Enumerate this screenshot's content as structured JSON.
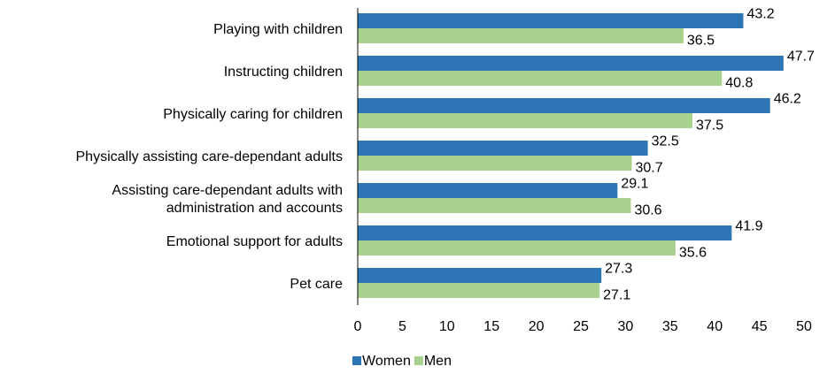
{
  "chart_data": {
    "type": "bar",
    "orientation": "horizontal",
    "categories": [
      "Playing with children",
      "Instructing children",
      "Physically caring for children",
      "Physically assisting care-dependant adults",
      "Assisting care-dependant adults with administration and accounts",
      "Emotional support for adults",
      "Pet care"
    ],
    "category_lines": [
      [
        "Playing with children"
      ],
      [
        "Instructing children"
      ],
      [
        "Physically caring for children"
      ],
      [
        "Physically assisting care-dependant adults"
      ],
      [
        "Assisting care-dependant adults with",
        "administration and accounts"
      ],
      [
        "Emotional support for adults"
      ],
      [
        "Pet care"
      ]
    ],
    "series": [
      {
        "name": "Women",
        "color": "#2E75B6",
        "values": [
          43.2,
          47.7,
          46.2,
          32.5,
          29.1,
          41.9,
          27.3
        ]
      },
      {
        "name": "Men",
        "color": "#A9D18E",
        "values": [
          36.5,
          40.8,
          37.5,
          30.7,
          30.6,
          35.6,
          27.1
        ]
      }
    ],
    "xlim": [
      0,
      50
    ],
    "xticks": [
      0,
      5,
      10,
      15,
      20,
      25,
      30,
      35,
      40,
      45,
      50
    ],
    "grid": false,
    "legend_position": "bottom",
    "data_labels": true
  }
}
